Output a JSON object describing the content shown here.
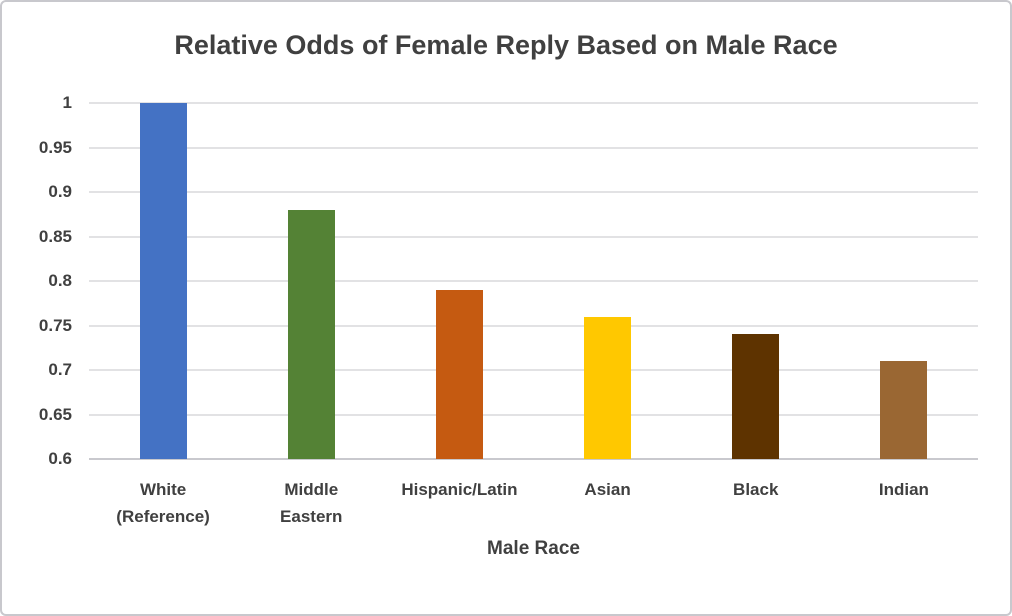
{
  "window": {
    "background_color": "#ffffff",
    "border_color": "#c8c8cd"
  },
  "chart_data": {
    "type": "bar",
    "title": "Relative Odds of Female Reply Based on Male Race",
    "xlabel": "Male Race",
    "ylabel": "",
    "categories": [
      "White\n(Reference)",
      "Middle\nEastern",
      "Hispanic/Latin",
      "Asian",
      "Black",
      "Indian"
    ],
    "values": [
      1,
      0.88,
      0.79,
      0.76,
      0.74,
      0.71
    ],
    "bar_colors": [
      "#4472c4",
      "#548235",
      "#c55a11",
      "#ffc800",
      "#5e3300",
      "#9a6733"
    ],
    "ylim": [
      0.6,
      1.0
    ],
    "ytick_labels": [
      "0.6",
      "0.65",
      "0.7",
      "0.75",
      "0.8",
      "0.85",
      "0.9",
      "0.95",
      "1"
    ],
    "ytick_values": [
      0.6,
      0.65,
      0.7,
      0.75,
      0.8,
      0.85,
      0.9,
      0.95,
      1
    ],
    "grid": "horizontal",
    "legend": "none",
    "text_color": "#404040",
    "gridline_color": "#e2e2e4",
    "axis_line_color": "#c9c9ce"
  }
}
